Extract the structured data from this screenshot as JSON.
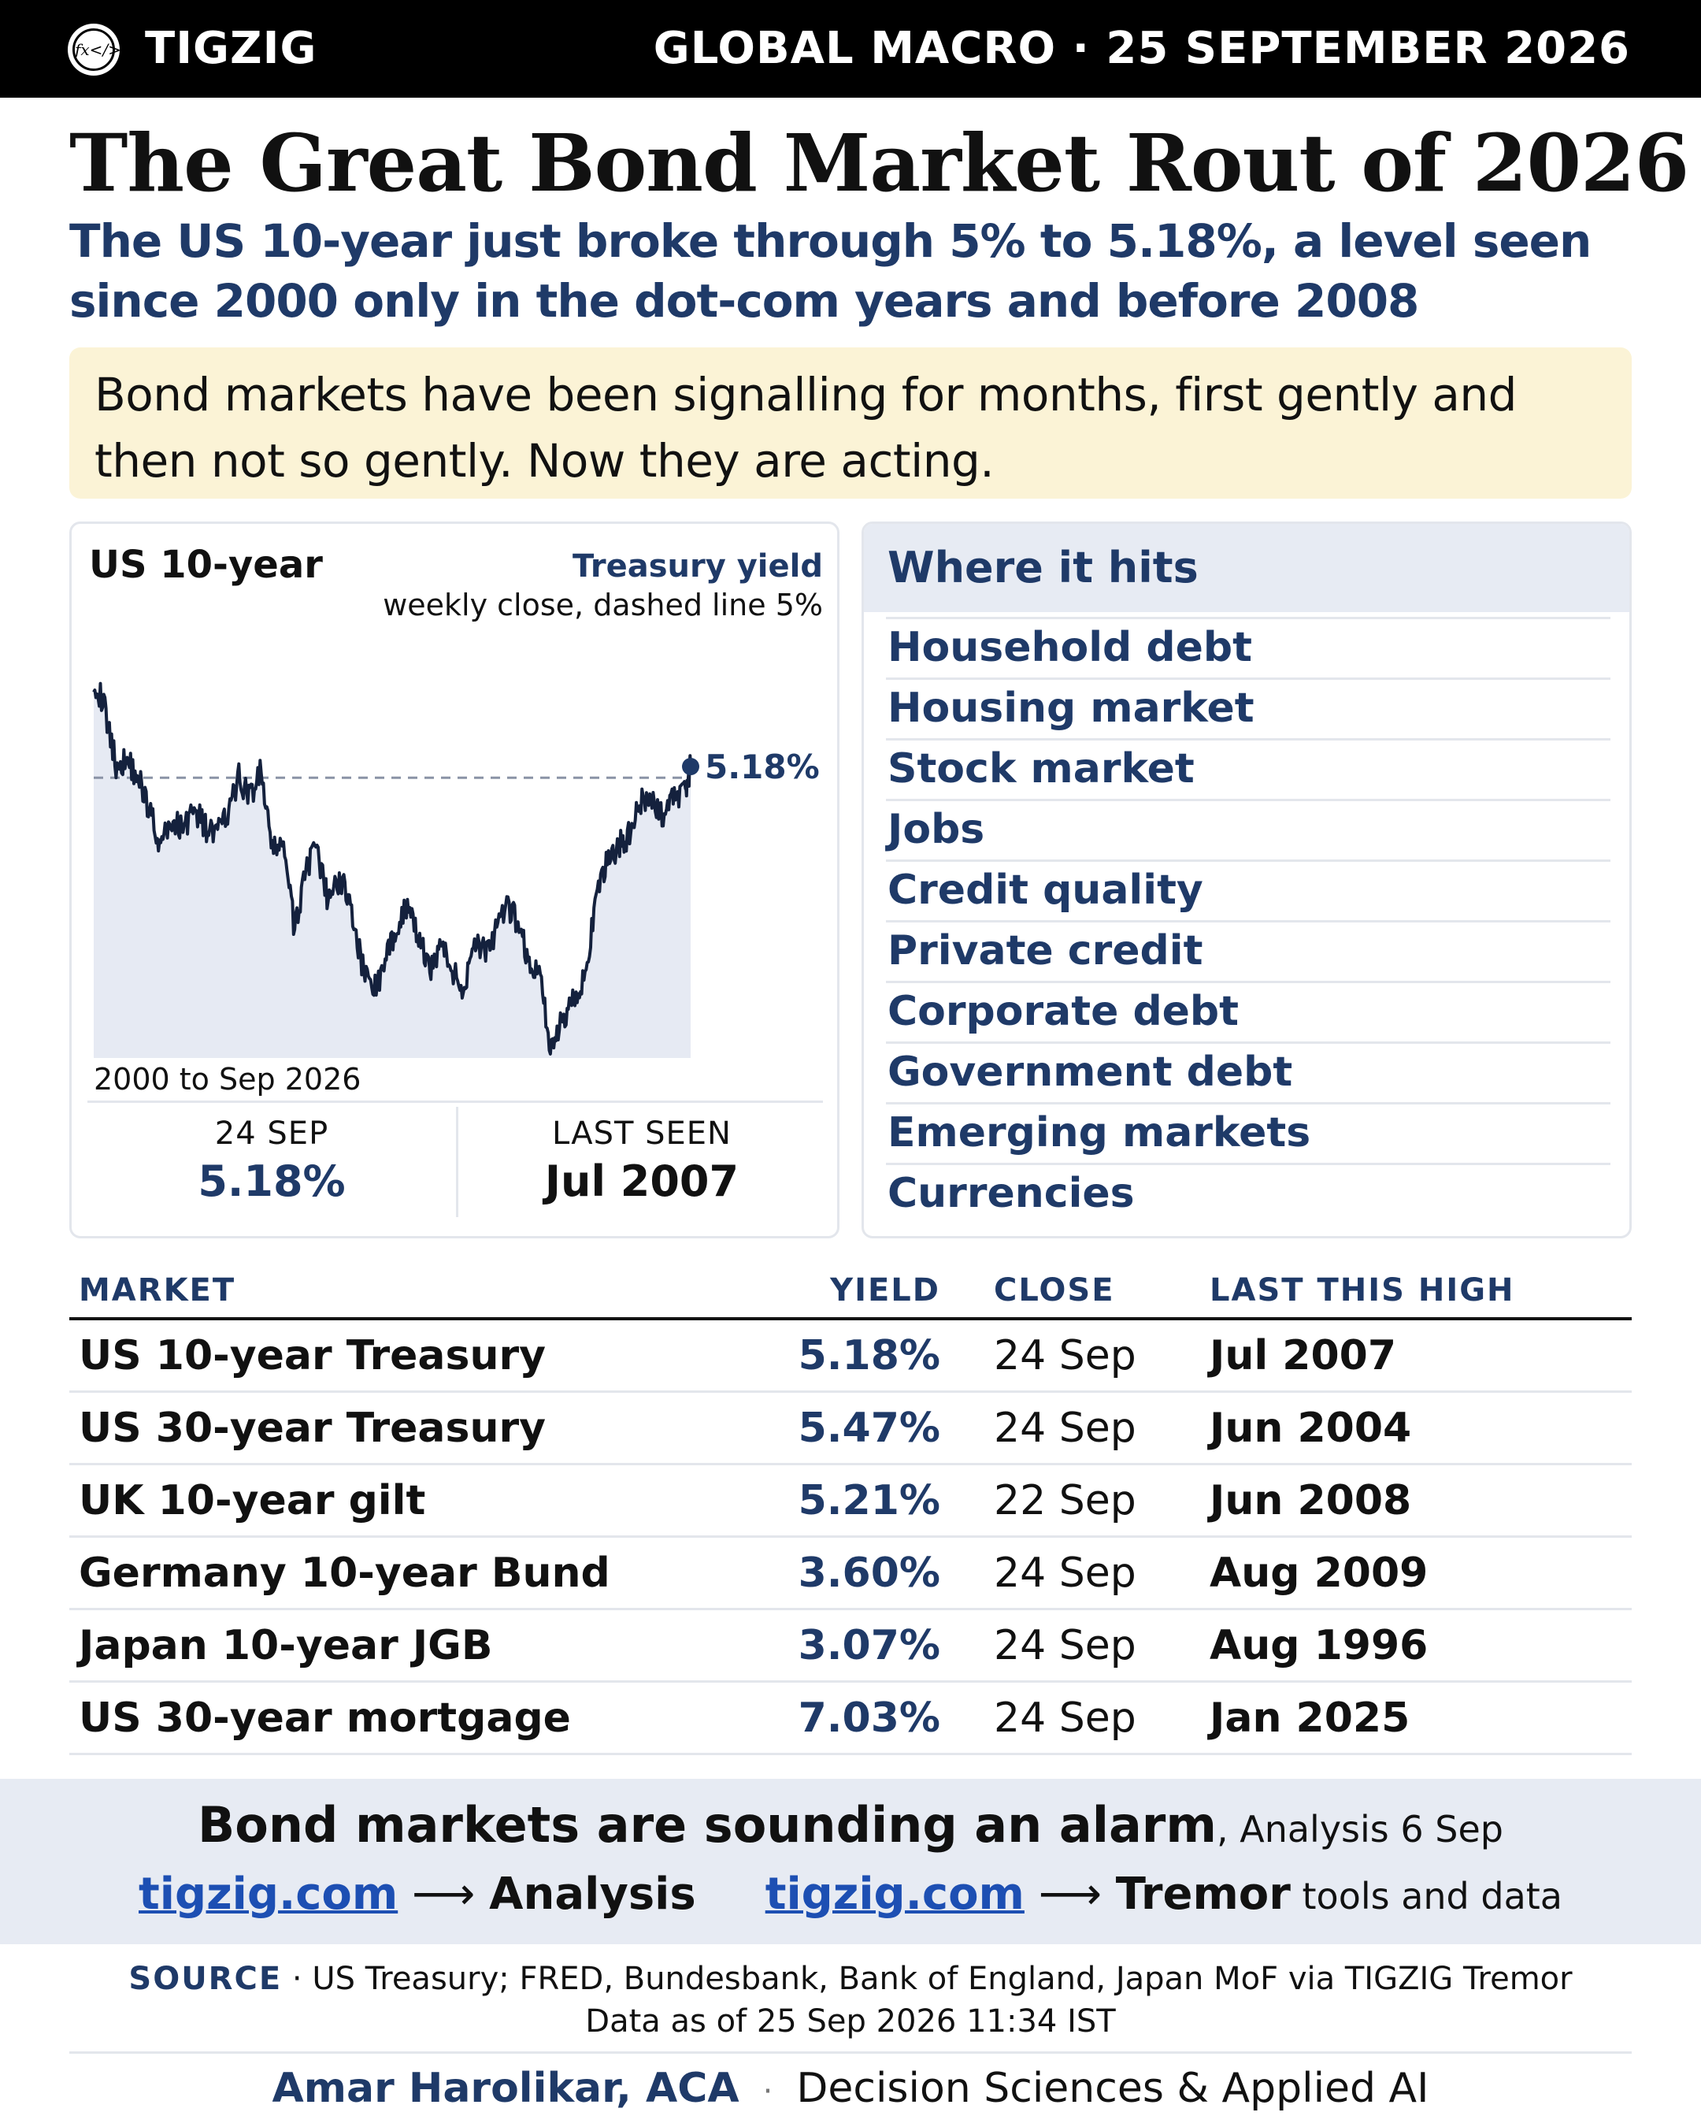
{
  "header": {
    "logo_text": "fx</>",
    "brand": "TIGZIG",
    "section_date": "GLOBAL MACRO · 25 SEPTEMBER 2026"
  },
  "headline": "The Great Bond Market Rout of 2026",
  "subheadline": "The US 10-year just broke through 5% to 5.18%, a level seen since 2000 only in the dot-com years and before 2008",
  "callout": "Bond markets have been signalling for months, first gently and then not so gently. Now they are acting.",
  "chart_card": {
    "title": "US 10-year",
    "subtitle1": "Treasury yield",
    "subtitle2": "weekly close, dashed line 5%",
    "range_label": "2000 to Sep 2026",
    "end_label": "5.18%",
    "stat_left_label": "24 SEP",
    "stat_left_value": "5.18%",
    "stat_right_label": "LAST SEEN",
    "stat_right_value": "Jul 2007"
  },
  "chart_data": {
    "type": "area",
    "title": "US 10-year",
    "subtitle": "Treasury yield",
    "xlabel": "2000 to Sep 2026",
    "ylabel": "",
    "x": [
      2000.0,
      2000.5,
      2001.0,
      2001.5,
      2002.0,
      2002.5,
      2003.0,
      2003.5,
      2004.0,
      2004.5,
      2005.0,
      2005.5,
      2006.0,
      2006.5,
      2007.0,
      2007.5,
      2008.0,
      2008.5,
      2009.0,
      2009.5,
      2010.0,
      2010.5,
      2011.0,
      2011.5,
      2012.0,
      2012.5,
      2013.0,
      2013.5,
      2014.0,
      2014.5,
      2015.0,
      2015.5,
      2016.0,
      2016.5,
      2017.0,
      2017.5,
      2018.0,
      2018.5,
      2019.0,
      2019.5,
      2020.0,
      2020.5,
      2021.0,
      2021.5,
      2022.0,
      2022.5,
      2023.0,
      2023.5,
      2024.0,
      2024.5,
      2025.0,
      2025.5,
      2026.0,
      2026.5,
      2026.73
    ],
    "values": [
      6.6,
      6.1,
      5.2,
      5.3,
      5.0,
      4.5,
      3.9,
      4.3,
      4.2,
      4.5,
      4.2,
      4.1,
      4.4,
      5.0,
      4.7,
      5.1,
      3.8,
      4.0,
      2.5,
      3.6,
      3.8,
      3.0,
      3.4,
      3.0,
      2.0,
      1.6,
      1.9,
      2.6,
      2.9,
      2.5,
      1.9,
      2.3,
      2.0,
      1.5,
      2.4,
      2.2,
      2.5,
      2.9,
      2.7,
      2.0,
      1.8,
      0.6,
      1.1,
      1.5,
      1.8,
      3.0,
      3.7,
      3.9,
      4.1,
      4.6,
      4.6,
      4.4,
      4.7,
      4.8,
      5.18
    ],
    "reference_line": 5.0,
    "ylim": [
      0.5,
      6.8
    ],
    "grid": false,
    "legend": "none"
  },
  "where_it_hits": {
    "title": "Where it hits",
    "items": [
      "Household debt",
      "Housing market",
      "Stock market",
      "Jobs",
      "Credit quality",
      "Private credit",
      "Corporate debt",
      "Government debt",
      "Emerging markets",
      "Currencies"
    ]
  },
  "table": {
    "headers": {
      "market": "MARKET",
      "yield": "YIELD",
      "close": "CLOSE",
      "high": "LAST THIS HIGH"
    },
    "rows": [
      {
        "market": "US 10-year Treasury",
        "yield": "5.18%",
        "close": "24 Sep",
        "high": "Jul 2007"
      },
      {
        "market": "US 30-year Treasury",
        "yield": "5.47%",
        "close": "24 Sep",
        "high": "Jun 2004"
      },
      {
        "market": "UK 10-year gilt",
        "yield": "5.21%",
        "close": "22 Sep",
        "high": "Jun 2008"
      },
      {
        "market": "Germany 10-year Bund",
        "yield": "3.60%",
        "close": "24 Sep",
        "high": "Aug 2009"
      },
      {
        "market": "Japan 10-year JGB",
        "yield": "3.07%",
        "close": "24 Sep",
        "high": "Aug 1996"
      },
      {
        "market": "US 30-year mortgage",
        "yield": "7.03%",
        "close": "24 Sep",
        "high": "Jan 2025"
      }
    ]
  },
  "promo": {
    "title": "Bond markets are sounding an alarm",
    "title_suffix": ", Analysis 6 Sep",
    "link1_text": "tigzig.com",
    "link1_arrow": " ⟶ ",
    "link1_label": "Analysis",
    "link2_text": "tigzig.com",
    "link2_arrow": " ⟶ ",
    "link2_label": "Tremor",
    "link2_suffix": " tools and data"
  },
  "source": {
    "label": "SOURCE",
    "text": " · US Treasury; FRED, Bundesbank, Bank of England, Japan MoF via TIGZIG Tremor",
    "as_of": "Data as of 25 Sep 2026 11:34 IST"
  },
  "author": {
    "name": "Amar Harolikar, ACA",
    "dot": "·",
    "role": "Decision Sciences & Applied AI"
  },
  "colors": {
    "navy": "#1f3a68",
    "link_blue": "#1d4fb3",
    "callout_bg": "#fbf3d6",
    "panel_bg": "#e7ebf3",
    "area_fill": "#e6eaf3",
    "line": "#14213d"
  }
}
